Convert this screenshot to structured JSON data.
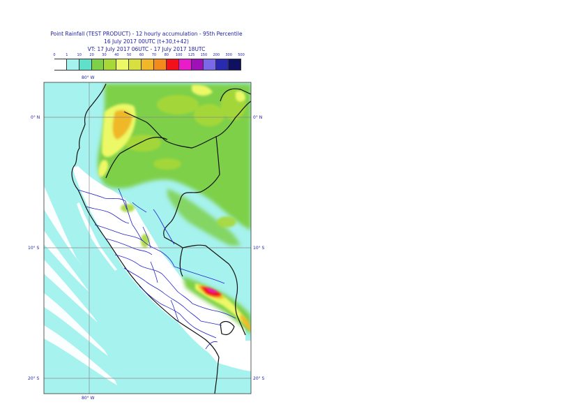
{
  "header": {
    "line1": "Point Rainfall (TEST PRODUCT) - 12 hourly accumulation - 95th Percentile",
    "line2": "16 July 2017 00UTC (t+30,t+42)",
    "line3": "VT: 17 July 2017 06UTC - 17 July 2017 18UTC"
  },
  "legend": {
    "ticks": [
      "0",
      "1",
      "10",
      "20",
      "30",
      "40",
      "50",
      "60",
      "70",
      "80",
      "100",
      "125",
      "150",
      "200",
      "300",
      "500"
    ],
    "colors": [
      "#ffffff",
      "#a6f2ee",
      "#60e0c8",
      "#7ed04a",
      "#a8d838",
      "#ecf866",
      "#d8e040",
      "#f0b828",
      "#f48a1e",
      "#f2101a",
      "#e81cc8",
      "#a010b8",
      "#7a6ae8",
      "#2a2ab0",
      "#101060"
    ]
  },
  "map": {
    "lon_label_top": "80° W",
    "lon_label_bottom": "80° W",
    "lat_labels": [
      "0° N",
      "10° S",
      "20° S"
    ],
    "ocean_color": "#a6f2ee",
    "land_dry_color": "#ffffff",
    "wet_colors": [
      "#7ed04a",
      "#a8d838",
      "#ecf866",
      "#f0b828",
      "#f2101a"
    ]
  }
}
